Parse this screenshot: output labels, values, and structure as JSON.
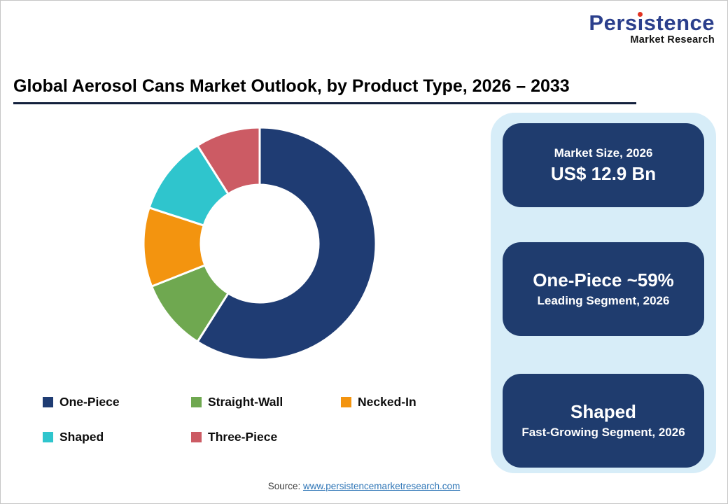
{
  "logo": {
    "name": "Persistence",
    "subtitle": "Market Research",
    "navy": "#2b3f8c",
    "red_dot": "#e23322"
  },
  "title": "Global Aerosol Cans Market Outlook, by Product Type, 2026 – 2033",
  "chart_data": {
    "type": "pie",
    "subtype": "donut",
    "title": "Global Aerosol Cans Market Outlook, by Product Type, 2026 – 2033",
    "categories": [
      "One-Piece",
      "Straight-Wall",
      "Necked-In",
      "Shaped",
      "Three-Piece"
    ],
    "values": [
      59,
      10,
      11,
      11,
      9
    ],
    "unit": "%",
    "colors": [
      "#1f3c73",
      "#6fa850",
      "#f3940f",
      "#2fc5cd",
      "#cc5b64"
    ],
    "start_angle_deg": 0,
    "direction": "clockwise",
    "inner_radius_ratio": 0.5,
    "legend_position": "bottom",
    "annotations": [
      "One-Piece ~59% leading segment 2026",
      "Shaped fast-growing segment 2026",
      "Market size 2026: US$ 12.9 Bn"
    ]
  },
  "info_panel": {
    "bg_color": "#d7edf8",
    "card_color": "#1f3c6e",
    "cards": [
      {
        "line1": "Market Size, 2026",
        "line2": "US$ 12.9 Bn"
      },
      {
        "line1": "One-Piece ~59%",
        "line2": "Leading Segment, 2026"
      },
      {
        "line1": "Shaped",
        "line2": "Fast-Growing Segment, 2026"
      }
    ]
  },
  "footer": {
    "source_label": "Source: ",
    "source_link": "www.persistencemarketresearch.com",
    "link_color": "#2e75b6"
  },
  "accent_colors": {
    "title_rule": "#13203c"
  }
}
